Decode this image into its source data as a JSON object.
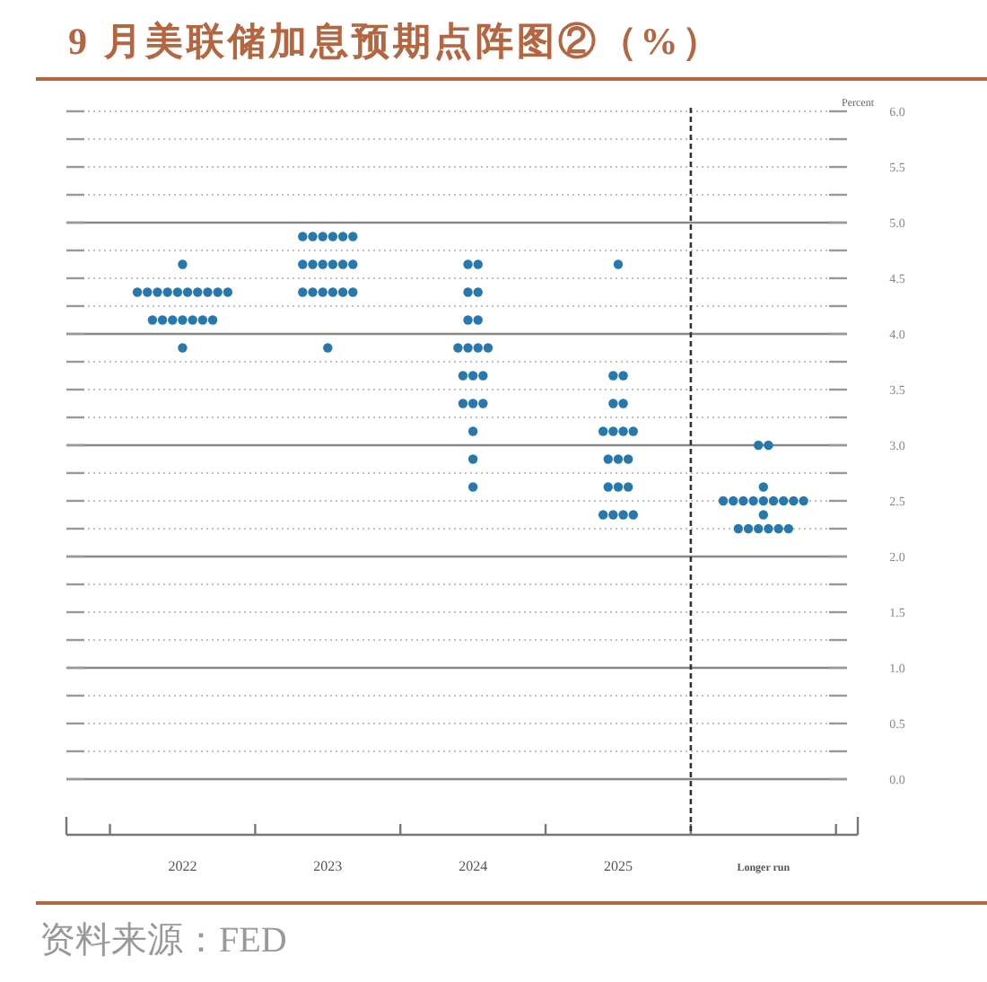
{
  "chart_data": {
    "type": "scatter",
    "title": "9 月美联储加息预期点阵图②（%）",
    "ylabel": "Percent",
    "categories": [
      "2022",
      "2023",
      "2024",
      "2025",
      "Longer run"
    ],
    "series": [
      {
        "color": "#2878b0",
        "values": [
          4.625,
          4.875,
          4.625,
          4.625,
          3
        ]
      },
      {
        "color": "#2878b0",
        "values": [
          4.375,
          4.875,
          4.625,
          3.625,
          3
        ]
      },
      {
        "color": "#2878b0",
        "values": [
          4.375,
          4.875,
          4.375,
          3.625,
          2.625
        ]
      },
      {
        "color": "#2878b0",
        "values": [
          4.375,
          4.875,
          4.375,
          3.375,
          2.5
        ]
      },
      {
        "color": "#2878b0",
        "values": [
          4.375,
          4.875,
          4.125,
          3.375,
          2.5
        ]
      },
      {
        "color": "#2878b0",
        "values": [
          4.375,
          4.875,
          4.125,
          3.125,
          2.5
        ]
      },
      {
        "color": "#2878b0",
        "values": [
          4.375,
          4.625,
          3.875,
          3.125,
          2.5
        ]
      },
      {
        "color": "#2878b0",
        "values": [
          4.375,
          4.625,
          3.875,
          3.125,
          2.5
        ]
      },
      {
        "color": "#2878b0",
        "values": [
          4.375,
          4.625,
          3.875,
          3.125,
          2.5
        ]
      },
      {
        "color": "#2878b0",
        "values": [
          4.375,
          4.625,
          3.875,
          2.875,
          2.5
        ]
      },
      {
        "color": "#2878b0",
        "values": [
          4.375,
          4.625,
          3.625,
          2.875,
          2.5
        ]
      },
      {
        "color": "#2878b0",
        "values": [
          4.125,
          4.625,
          3.625,
          2.875,
          2.5
        ]
      },
      {
        "color": "#2878b0",
        "values": [
          4.125,
          4.375,
          3.625,
          2.625,
          2.375
        ]
      },
      {
        "color": "#2878b0",
        "values": [
          4.125,
          4.375,
          3.375,
          2.625,
          2.25
        ]
      },
      {
        "color": "#2878b0",
        "values": [
          4.125,
          4.375,
          3.375,
          2.625,
          2.25
        ]
      },
      {
        "color": "#2878b0",
        "values": [
          4.125,
          4.375,
          3.375,
          2.375,
          2.25
        ]
      },
      {
        "color": "#2878b0",
        "values": [
          4.125,
          4.375,
          3.125,
          2.375,
          2.25
        ]
      },
      {
        "color": "#2878b0",
        "values": [
          4.125,
          4.375,
          2.875,
          2.375,
          2.25
        ]
      },
      {
        "color": "#2878b0",
        "values": [
          3.875,
          3.875,
          2.625,
          2.375,
          2.25
        ]
      }
    ],
    "ylim": [
      -0.5,
      6
    ],
    "yticks": [
      {
        "value": 0,
        "label": "0.0"
      },
      {
        "value": 0.25,
        "label": null
      },
      {
        "value": 0.5,
        "label": "0.5"
      },
      {
        "value": 0.75,
        "label": null
      },
      {
        "value": 1,
        "label": "1.0"
      },
      {
        "value": 1.25,
        "label": null
      },
      {
        "value": 1.5,
        "label": "1.5"
      },
      {
        "value": 1.75,
        "label": null
      },
      {
        "value": 2,
        "label": "2.0"
      },
      {
        "value": 2.25,
        "label": null
      },
      {
        "value": 2.5,
        "label": "2.5"
      },
      {
        "value": 2.75,
        "label": null
      },
      {
        "value": 3,
        "label": "3.0"
      },
      {
        "value": 3.25,
        "label": null
      },
      {
        "value": 3.5,
        "label": "3.5"
      },
      {
        "value": 3.75,
        "label": null
      },
      {
        "value": 4,
        "label": "4.0"
      },
      {
        "value": 4.25,
        "label": null
      },
      {
        "value": 4.5,
        "label": "4.5"
      },
      {
        "value": 4.75,
        "label": null
      },
      {
        "value": 5,
        "label": "5.0"
      },
      {
        "value": 5.25,
        "label": null
      },
      {
        "value": 5.5,
        "label": "5.5"
      },
      {
        "value": 5.75,
        "label": null
      },
      {
        "value": 6,
        "label": "6.0"
      }
    ],
    "grid": "y",
    "marker": "circle",
    "annotations": [
      "资料来源：FED"
    ]
  }
}
